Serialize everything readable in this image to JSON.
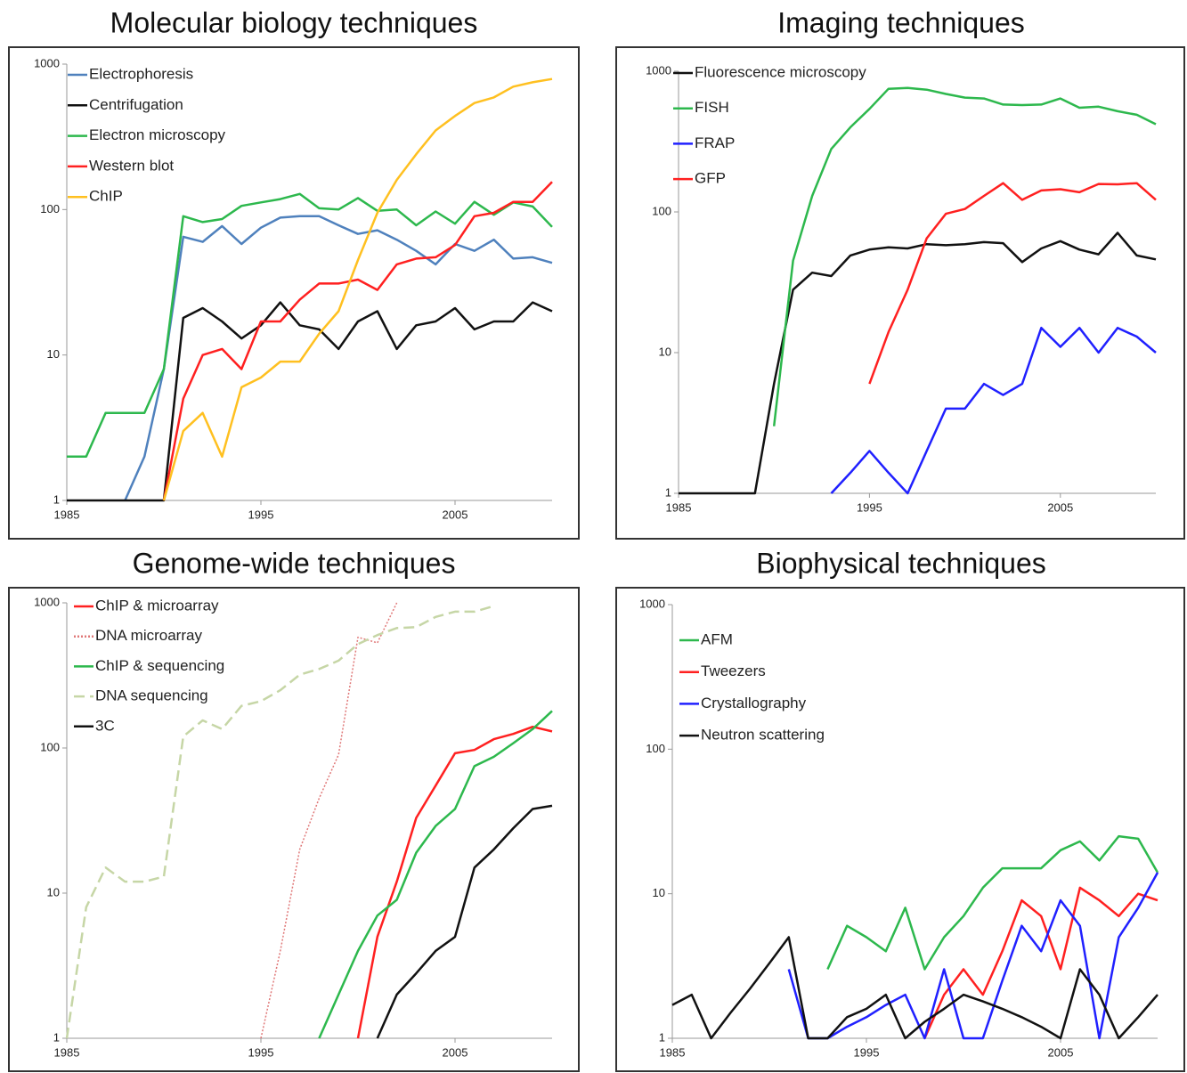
{
  "chart_data": [
    {
      "type": "line",
      "title": "Molecular biology techniques",
      "log_scale": true,
      "xlim": [
        1985,
        2010
      ],
      "xticks": [
        1985,
        1995,
        2005
      ],
      "ylim": [
        1,
        1000
      ],
      "yticks": [
        1,
        10,
        100,
        1000
      ],
      "x": [
        1985,
        1986,
        1987,
        1988,
        1989,
        1990,
        1991,
        1992,
        1993,
        1994,
        1995,
        1996,
        1997,
        1998,
        1999,
        2000,
        2001,
        2002,
        2003,
        2004,
        2005,
        2006,
        2007,
        2008,
        2009,
        2010
      ],
      "series": [
        {
          "name": "Electrophoresis",
          "color": "#4f81bd",
          "style": "solid",
          "values": [
            null,
            null,
            null,
            1,
            2,
            8,
            65,
            60,
            77,
            58,
            75,
            88,
            90,
            90,
            78,
            68,
            72,
            62,
            52,
            42,
            58,
            52,
            62,
            46,
            47,
            43
          ]
        },
        {
          "name": "Centrifugation",
          "color": "#111111",
          "style": "solid",
          "values": [
            1,
            1,
            1,
            1,
            1,
            1,
            18,
            21,
            17,
            13,
            16,
            23,
            16,
            15,
            11,
            17,
            20,
            11,
            16,
            17,
            21,
            15,
            17,
            17,
            23,
            20
          ]
        },
        {
          "name": "Electron microscopy",
          "color": "#2db84d",
          "style": "solid",
          "values": [
            2,
            2,
            4,
            4,
            4,
            8,
            90,
            82,
            86,
            106,
            112,
            118,
            128,
            102,
            100,
            120,
            98,
            100,
            78,
            97,
            80,
            113,
            92,
            112,
            105,
            76
          ]
        },
        {
          "name": "Western blot",
          "color": "#ff2020",
          "style": "solid",
          "values": [
            null,
            null,
            null,
            null,
            null,
            1,
            5,
            10,
            11,
            8,
            17,
            17,
            24,
            31,
            31,
            33,
            28,
            42,
            46,
            47,
            57,
            90,
            95,
            113,
            113,
            155
          ]
        },
        {
          "name": "ChIP",
          "color": "#ffc020",
          "style": "solid",
          "values": [
            null,
            null,
            null,
            null,
            null,
            1,
            3,
            4,
            2,
            6,
            7,
            9,
            9,
            14,
            20,
            45,
            95,
            160,
            240,
            350,
            440,
            540,
            590,
            700,
            750,
            790
          ]
        }
      ]
    },
    {
      "type": "line",
      "title": "Imaging techniques",
      "log_scale": true,
      "xlim": [
        1985,
        2010
      ],
      "xticks": [
        1985,
        1995,
        2005
      ],
      "ylim": [
        1,
        1000
      ],
      "yticks": [
        1,
        10,
        100,
        1000
      ],
      "x": [
        1985,
        1986,
        1987,
        1988,
        1989,
        1990,
        1991,
        1992,
        1993,
        1994,
        1995,
        1996,
        1997,
        1998,
        1999,
        2000,
        2001,
        2002,
        2003,
        2004,
        2005,
        2006,
        2007,
        2008,
        2009,
        2010
      ],
      "series": [
        {
          "name": "Fluorescence microscopy",
          "color": "#111111",
          "style": "solid",
          "values": [
            1,
            1,
            1,
            1,
            1,
            6,
            28,
            37,
            35,
            49,
            54,
            56,
            55,
            59,
            58,
            59,
            61,
            60,
            44,
            55,
            62,
            54,
            50,
            71,
            49,
            46
          ]
        },
        {
          "name": "FISH",
          "color": "#2db84d",
          "style": "solid",
          "values": [
            null,
            null,
            null,
            null,
            null,
            3,
            45,
            130,
            280,
            400,
            540,
            750,
            760,
            740,
            690,
            650,
            640,
            580,
            575,
            580,
            640,
            550,
            560,
            520,
            490,
            420
          ]
        },
        {
          "name": "FRAP",
          "color": "#2020ff",
          "style": "solid",
          "values": [
            null,
            null,
            null,
            null,
            null,
            null,
            null,
            null,
            1,
            1.4,
            2,
            1.4,
            1,
            2,
            4,
            4,
            6,
            5,
            6,
            15,
            11,
            15,
            10,
            15,
            13,
            10
          ]
        },
        {
          "name": "GFP",
          "color": "#ff2020",
          "style": "solid",
          "values": [
            null,
            null,
            null,
            null,
            null,
            null,
            null,
            null,
            null,
            null,
            6,
            14,
            28,
            65,
            97,
            105,
            130,
            160,
            122,
            142,
            145,
            138,
            158,
            157,
            160,
            122
          ]
        }
      ]
    },
    {
      "type": "line",
      "title": "Genome-wide techniques",
      "log_scale": true,
      "xlim": [
        1985,
        2010
      ],
      "xticks": [
        1985,
        1995,
        2005
      ],
      "ylim": [
        1,
        1000
      ],
      "yticks": [
        1,
        10,
        100,
        1000
      ],
      "x": [
        1985,
        1986,
        1987,
        1988,
        1989,
        1990,
        1991,
        1992,
        1993,
        1994,
        1995,
        1996,
        1997,
        1998,
        1999,
        2000,
        2001,
        2002,
        2003,
        2004,
        2005,
        2006,
        2007,
        2008,
        2009,
        2010
      ],
      "series": [
        {
          "name": "ChIP & microarray",
          "color": "#ff2020",
          "style": "solid",
          "values": [
            null,
            null,
            null,
            null,
            null,
            null,
            null,
            null,
            null,
            null,
            null,
            null,
            null,
            null,
            null,
            1,
            5,
            12,
            33,
            55,
            92,
            97,
            115,
            125,
            140,
            130
          ]
        },
        {
          "name": "DNA microarray",
          "color": "#e07878",
          "style": "dotted",
          "values": [
            null,
            null,
            null,
            null,
            null,
            null,
            null,
            null,
            null,
            null,
            1,
            4,
            20,
            45,
            90,
            580,
            530,
            1000,
            null,
            null,
            null,
            null,
            null,
            null,
            null,
            null
          ]
        },
        {
          "name": "ChIP & sequencing",
          "color": "#2db84d",
          "style": "solid",
          "values": [
            null,
            null,
            null,
            null,
            null,
            null,
            null,
            null,
            null,
            null,
            null,
            null,
            null,
            1,
            2,
            4,
            7,
            9,
            19,
            29,
            38,
            75,
            87,
            108,
            135,
            180
          ]
        },
        {
          "name": "DNA sequencing",
          "color": "#c6d6a6",
          "style": "dashed",
          "values": [
            1,
            8,
            15,
            12,
            12,
            13,
            120,
            155,
            135,
            195,
            210,
            250,
            320,
            350,
            400,
            520,
            600,
            670,
            680,
            800,
            870,
            870,
            950,
            null,
            null,
            null
          ]
        },
        {
          "name": "3C",
          "color": "#111111",
          "style": "solid",
          "values": [
            null,
            null,
            null,
            null,
            null,
            null,
            null,
            null,
            null,
            null,
            null,
            null,
            null,
            null,
            null,
            null,
            1,
            2,
            2.8,
            4,
            5,
            15,
            20,
            28,
            38,
            40
          ]
        }
      ]
    },
    {
      "type": "line",
      "title": "Biophysical techniques",
      "log_scale": true,
      "xlim": [
        1985,
        2010
      ],
      "xticks": [
        1985,
        1995,
        2005
      ],
      "ylim": [
        1,
        1000
      ],
      "yticks": [
        1,
        10,
        100,
        1000
      ],
      "x": [
        1985,
        1986,
        1987,
        1988,
        1989,
        1990,
        1991,
        1992,
        1993,
        1994,
        1995,
        1996,
        1997,
        1998,
        1999,
        2000,
        2001,
        2002,
        2003,
        2004,
        2005,
        2006,
        2007,
        2008,
        2009,
        2010
      ],
      "series": [
        {
          "name": "AFM",
          "color": "#2db84d",
          "style": "solid",
          "values": [
            null,
            null,
            null,
            null,
            null,
            null,
            null,
            null,
            3,
            6,
            5,
            4,
            8,
            3,
            5,
            7,
            11,
            15,
            15,
            15,
            20,
            23,
            17,
            25,
            24,
            14
          ]
        },
        {
          "name": "Tweezers",
          "color": "#ff2020",
          "style": "solid",
          "values": [
            null,
            null,
            null,
            null,
            null,
            null,
            null,
            null,
            null,
            null,
            null,
            null,
            null,
            1,
            2,
            3,
            2,
            4,
            9,
            7,
            3,
            11,
            9,
            7,
            10,
            9
          ]
        },
        {
          "name": "Crystallography",
          "color": "#2020ff",
          "style": "solid",
          "values": [
            null,
            null,
            null,
            null,
            null,
            null,
            3,
            1,
            1,
            1.2,
            1.4,
            1.7,
            2,
            1,
            3,
            1,
            1,
            2.5,
            6,
            4,
            9,
            6,
            1,
            5,
            8,
            14
          ]
        },
        {
          "name": "Neutron scattering",
          "color": "#111111",
          "style": "solid",
          "values": [
            1.7,
            2,
            1,
            1.5,
            2.2,
            3.3,
            5,
            1,
            1,
            1.4,
            1.6,
            2,
            1,
            1.3,
            1.6,
            2,
            1.8,
            1.6,
            1.4,
            1.2,
            1,
            3,
            2,
            1,
            1.4,
            2
          ]
        }
      ]
    }
  ]
}
